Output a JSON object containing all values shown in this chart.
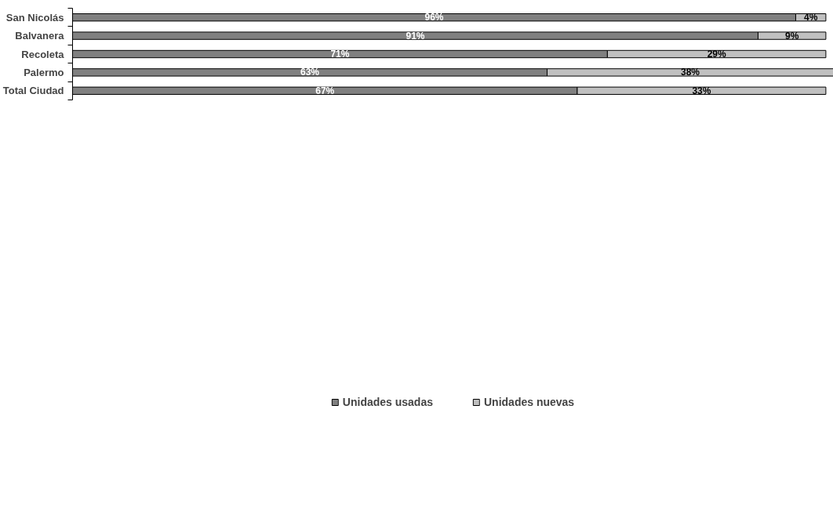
{
  "chart_data": {
    "type": "bar",
    "orientation": "horizontal",
    "stacked": true,
    "categories": [
      "San Nicolás",
      "Balvanera",
      "Recoleta",
      "Palermo",
      "Total Ciudad"
    ],
    "series": [
      {
        "name": "Unidades usadas",
        "color": "#808080",
        "values": [
          96,
          91,
          71,
          63,
          67
        ],
        "value_labels": [
          "96%",
          "91%",
          "71%",
          "63%",
          "67%"
        ]
      },
      {
        "name": "Unidades nuevas",
        "color": "#c0c0c0",
        "values": [
          4,
          9,
          29,
          38,
          33
        ],
        "value_labels": [
          "4%",
          "9%",
          "29%",
          "38%",
          "33%"
        ]
      }
    ],
    "legend": "bottom",
    "grid": false
  }
}
